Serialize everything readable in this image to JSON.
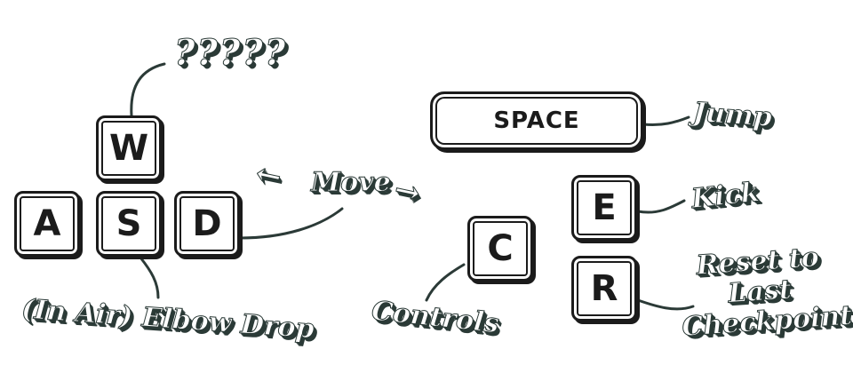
{
  "keys": {
    "w": "W",
    "a": "A",
    "s": "S",
    "d": "D",
    "space": "SPACE",
    "e": "E",
    "c": "C",
    "r": "R"
  },
  "labels": {
    "w_action": "?????",
    "move": "Move",
    "move_left_arrow": "←",
    "move_right_arrow": "→",
    "s_action": "(In Air) Elbow Drop",
    "jump": "Jump",
    "kick": "Kick",
    "controls": "Controls",
    "reset_lines": [
      "Reset to",
      "Last",
      "Checkpoint"
    ]
  },
  "colors": {
    "ink": "#1b1b1b",
    "label_outline": "#2b3a37",
    "label_fill": "#ffffff",
    "background": "#ffffff"
  }
}
